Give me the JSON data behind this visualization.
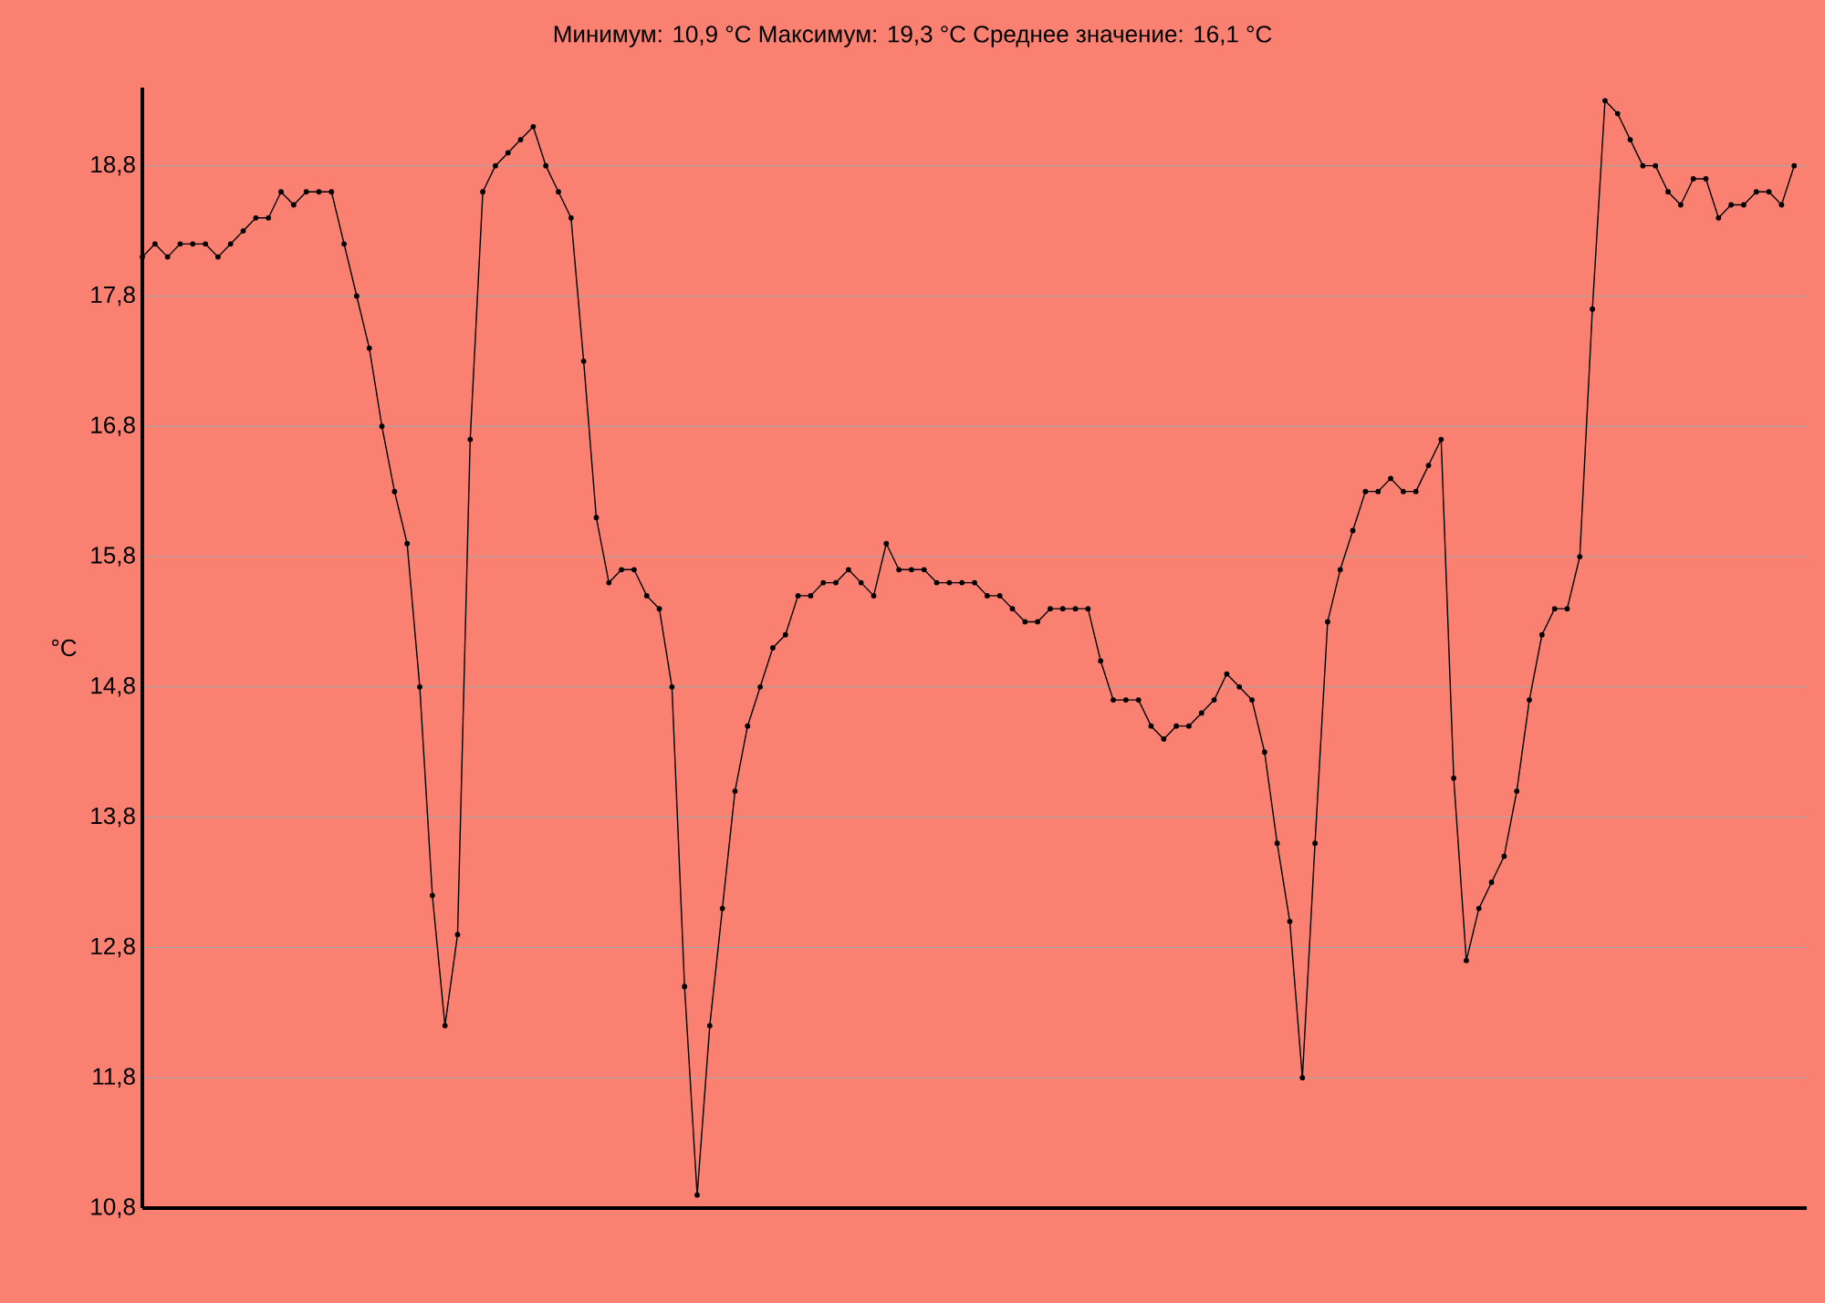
{
  "chart_data": {
    "type": "line",
    "title": "Минимум:  10,9  °C Максимум:  19,3  °C Среднее  значение:  16,1  °C",
    "ylabel": "°C",
    "categories": [
      null,
      null,
      null,
      null,
      null,
      null,
      null,
      null,
      null,
      null,
      null,
      null,
      null,
      null,
      null,
      null,
      null,
      null,
      null,
      null,
      null,
      null,
      null,
      null,
      null,
      null,
      null,
      null,
      null,
      null,
      null,
      null,
      null,
      null,
      null,
      null,
      null,
      null,
      null,
      null,
      null,
      null,
      null,
      null,
      null,
      null,
      null,
      null,
      null,
      null,
      null,
      null,
      null,
      null,
      null,
      null,
      null,
      null,
      null,
      null,
      null,
      null,
      null,
      null,
      null,
      null,
      null,
      null,
      null,
      null,
      null,
      null,
      null,
      null,
      null,
      null,
      null,
      null,
      null,
      null,
      null,
      null,
      null,
      null,
      null,
      null,
      null,
      null,
      null,
      null,
      null,
      null,
      null,
      null,
      null,
      null,
      null,
      null,
      null,
      null,
      null,
      null,
      null,
      null,
      null,
      null,
      null,
      null,
      null,
      null,
      null,
      null,
      null,
      null,
      null,
      null,
      null,
      null,
      null,
      null,
      null,
      null,
      null,
      null,
      null,
      null,
      null,
      null,
      null,
      null,
      null,
      null
    ],
    "series": [
      {
        "color": "#000000",
        "values": [
          18.1,
          18.2,
          18.1,
          18.2,
          18.2,
          18.2,
          18.1,
          18.2,
          18.3,
          18.4,
          18.4,
          18.6,
          18.5,
          18.6,
          18.6,
          18.6,
          18.2,
          17.8,
          17.4,
          16.8,
          16.3,
          15.9,
          14.8,
          13.2,
          12.2,
          12.9,
          16.7,
          18.6,
          18.8,
          18.9,
          19.0,
          19.1,
          18.8,
          18.6,
          18.4,
          17.3,
          16.1,
          15.6,
          15.7,
          15.7,
          15.5,
          15.4,
          14.8,
          12.5,
          10.9,
          12.2,
          13.1,
          14.0,
          14.5,
          14.8,
          15.1,
          15.2,
          15.5,
          15.5,
          15.6,
          15.6,
          15.7,
          15.6,
          15.5,
          15.9,
          15.7,
          15.7,
          15.7,
          15.6,
          15.6,
          15.6,
          15.6,
          15.5,
          15.5,
          15.4,
          15.3,
          15.3,
          15.4,
          15.4,
          15.4,
          15.4,
          15.0,
          14.7,
          14.7,
          14.7,
          14.5,
          14.4,
          14.5,
          14.5,
          14.6,
          14.7,
          14.9,
          14.8,
          14.7,
          14.3,
          13.6,
          13.0,
          11.8,
          13.6,
          15.3,
          15.7,
          16.0,
          16.3,
          16.3,
          16.4,
          16.3,
          16.3,
          16.5,
          16.7,
          14.1,
          12.7,
          13.1,
          13.3,
          13.5,
          14.0,
          14.7,
          15.2,
          15.4,
          15.4,
          15.8,
          17.7,
          19.3,
          19.2,
          19.0,
          18.8,
          18.8,
          18.6,
          18.5,
          18.7,
          18.7,
          18.4,
          18.5,
          18.5,
          18.6,
          18.6,
          18.5,
          18.8
        ]
      }
    ],
    "ylim": [
      10.8,
      19.4
    ],
    "yticks": [
      {
        "value": 10.8,
        "label": "10,8"
      },
      {
        "value": 11.8,
        "label": "11,8"
      },
      {
        "value": 12.8,
        "label": "12,8"
      },
      {
        "value": 13.8,
        "label": "13,8"
      },
      {
        "value": 14.8,
        "label": "14,8"
      },
      {
        "value": 15.8,
        "label": "15,8"
      },
      {
        "value": 16.8,
        "label": "16,8"
      },
      {
        "value": 17.8,
        "label": "17,8"
      },
      {
        "value": 18.8,
        "label": "18,8"
      }
    ],
    "grid": "y",
    "marker": "circle",
    "line_style": "solid",
    "tick_labels": "y"
  }
}
